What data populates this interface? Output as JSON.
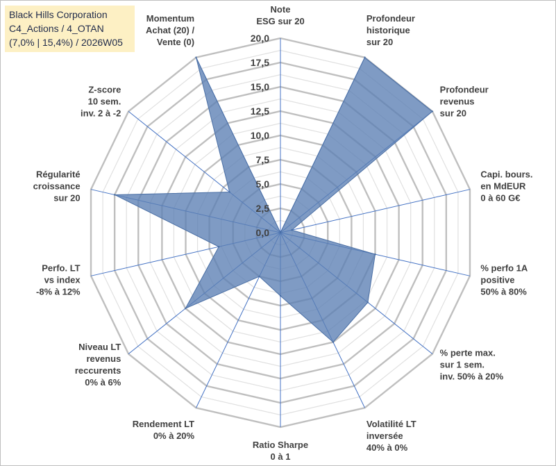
{
  "title_box": {
    "line1": "Black Hills Corporation",
    "line2": "C4_Actions / 4_OTAN",
    "line3": "(7,0% | 15,4%) / 2026W05"
  },
  "chart_data": {
    "type": "radar",
    "rmin": 0,
    "rmax": 20,
    "tick_step": 2.5,
    "ticks": [
      "0,0",
      "2,5",
      "5,0",
      "7,5",
      "10,0",
      "12,5",
      "15,0",
      "17,5",
      "20,0"
    ],
    "minor_gridlines": true,
    "axes": [
      {
        "label": [
          "Note",
          "ESG sur 20"
        ],
        "value": 0
      },
      {
        "label": [
          "Profondeur",
          "historique",
          "sur 20"
        ],
        "value": 20
      },
      {
        "label": [
          "Profondeur",
          "revenus",
          "sur 20"
        ],
        "value": 20
      },
      {
        "label": [
          "Capi. bours.",
          "en MdEUR",
          "0 à 60 G€"
        ],
        "value": 1.2
      },
      {
        "label": [
          "% perfo 1A",
          "positive",
          "50% à 80%"
        ],
        "value": 10
      },
      {
        "label": [
          "% perte max.",
          "sur 1 sem.",
          "inv. 50% à 20%"
        ],
        "value": 11.5
      },
      {
        "label": [
          "Volatilité LT",
          "inversée",
          "40% à 0%"
        ],
        "value": 12.5
      },
      {
        "label": [
          "Ratio Sharpe",
          "0 à 1"
        ],
        "value": 6.5
      },
      {
        "label": [
          "Rendement LT",
          "0% à 20%"
        ],
        "value": 5
      },
      {
        "label": [
          "Niveau LT",
          "revenus",
          "reccurents",
          "0% à 6%"
        ],
        "value": 12.5
      },
      {
        "label": [
          "Perfo. LT",
          "vs index",
          "-8% à 12%"
        ],
        "value": 6.5
      },
      {
        "label": [
          "Régularité",
          "croissance",
          "sur 20"
        ],
        "value": 17.5
      },
      {
        "label": [
          "Z-score",
          "10 sem.",
          "inv. 2 à -2"
        ],
        "value": 6.7
      },
      {
        "label": [
          "Momentum",
          "Achat (20) /",
          "Vente (0)"
        ],
        "value": 20
      }
    ],
    "series": [
      {
        "name": "Black Hills Corporation",
        "color": "#5b7fb3"
      }
    ],
    "grid_color": "#bfbfbf",
    "spoke_color": "#4472c4",
    "fill_color": "#5b7fb3"
  }
}
